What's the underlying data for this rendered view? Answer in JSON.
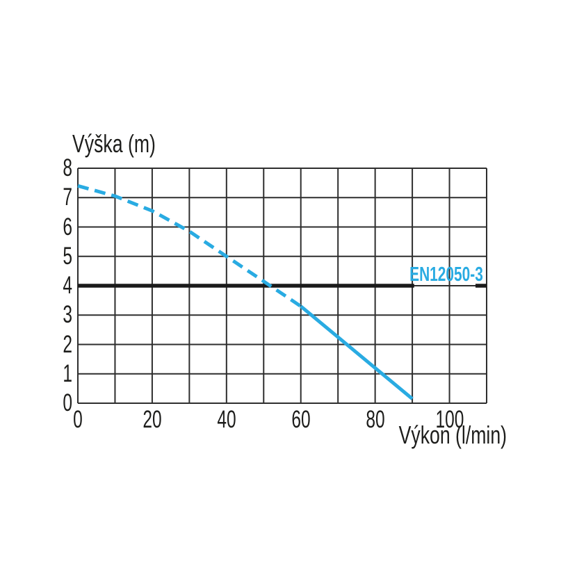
{
  "colors": {
    "curve": "#29abe2",
    "grid": "#2e2e2e",
    "reference_line": "#1a1a1a",
    "text": "#1d1d1b",
    "background": "#ffffff"
  },
  "chart_data": {
    "type": "line",
    "title": "",
    "ylabel": "Výška (m)",
    "xlabel": "Výkon (l/min)",
    "xlim": [
      0,
      110
    ],
    "ylim": [
      0,
      8
    ],
    "x_gridline_step": 10,
    "y_gridline_step": 1,
    "grid": true,
    "x_ticks": [
      0,
      20,
      40,
      60,
      80,
      100
    ],
    "y_ticks": [
      8,
      7,
      6,
      5,
      4,
      3,
      2,
      1,
      0
    ],
    "series": [
      {
        "name": "pump-curve-dashed",
        "style": "dashed",
        "color": "#29abe2",
        "points": [
          [
            0,
            7.4
          ],
          [
            10,
            7.05
          ],
          [
            20,
            6.55
          ],
          [
            30,
            5.85
          ],
          [
            40,
            5.0
          ],
          [
            50,
            4.15
          ],
          [
            60,
            3.3
          ]
        ]
      },
      {
        "name": "pump-curve-solid",
        "style": "solid",
        "color": "#29abe2",
        "points": [
          [
            60,
            3.3
          ],
          [
            90,
            0.15
          ]
        ]
      }
    ],
    "reference_line": {
      "label": "EN12050-3",
      "y": 4,
      "segments": [
        [
          0,
          90.5
        ],
        [
          107,
          110
        ]
      ],
      "color": "#1a1a1a",
      "label_color": "#29abe2"
    }
  }
}
